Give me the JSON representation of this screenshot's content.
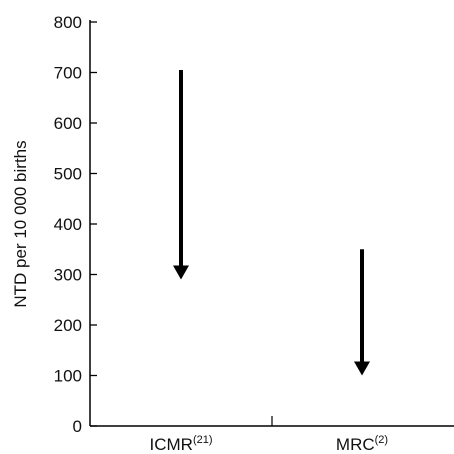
{
  "chart_data": {
    "type": "arrow",
    "ylabel": "NTD per 10 000 births",
    "ylim": [
      0,
      800
    ],
    "yticks": [
      0,
      100,
      200,
      300,
      400,
      500,
      600,
      700,
      800
    ],
    "categories": [
      {
        "label": "ICMR",
        "sup": "(21)"
      },
      {
        "label": "MRC",
        "sup": "(2)"
      }
    ],
    "arrows": [
      {
        "category": "ICMR",
        "from": 705,
        "to": 290
      },
      {
        "category": "MRC",
        "from": 350,
        "to": 100
      }
    ],
    "color": "#000000"
  }
}
